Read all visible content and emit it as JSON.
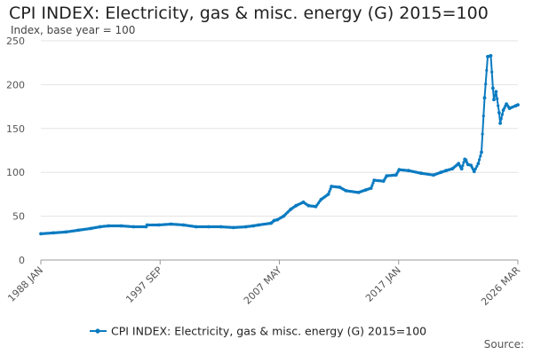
{
  "chart_data": {
    "type": "line",
    "title": "CPI INDEX: Electricity, gas & misc. energy (G) 2015=100",
    "subtitle": "Index, base year = 100",
    "xlabel": "",
    "ylabel": "",
    "x_tick_labels": [
      "1988 JAN",
      "1997 SEP",
      "2007 MAY",
      "2017 JAN",
      "2026 MAR"
    ],
    "y_tick_labels": [
      "0",
      "50",
      "100",
      "150",
      "200",
      "250"
    ],
    "ylim": [
      0,
      250
    ],
    "xlim": [
      "1988-01",
      "2026-03"
    ],
    "grid": "horizontal",
    "legend_position": "bottom",
    "series": [
      {
        "name": "CPI INDEX: Electricity, gas & misc. energy (G) 2015=100",
        "color": "#0b7bc1",
        "points": [
          [
            "1988-01",
            30
          ],
          [
            "1989-01",
            31
          ],
          [
            "1990-01",
            32
          ],
          [
            "1991-01",
            34
          ],
          [
            "1992-01",
            36
          ],
          [
            "1992-10",
            38
          ],
          [
            "1993-06",
            39
          ],
          [
            "1994-06",
            39
          ],
          [
            "1995-06",
            38
          ],
          [
            "1996-06",
            38
          ],
          [
            "1996-07",
            40
          ],
          [
            "1997-06",
            40
          ],
          [
            "1998-06",
            41
          ],
          [
            "1999-06",
            40
          ],
          [
            "2000-06",
            38
          ],
          [
            "2001-06",
            38
          ],
          [
            "2002-06",
            38
          ],
          [
            "2003-06",
            37
          ],
          [
            "2004-06",
            38
          ],
          [
            "2005-01",
            39
          ],
          [
            "2005-06",
            40
          ],
          [
            "2006-06",
            42
          ],
          [
            "2006-09",
            45
          ],
          [
            "2006-12",
            46
          ],
          [
            "2007-06",
            50
          ],
          [
            "2008-01",
            58
          ],
          [
            "2008-06",
            62
          ],
          [
            "2009-01",
            66
          ],
          [
            "2009-06",
            62
          ],
          [
            "2010-01",
            61
          ],
          [
            "2010-06",
            69
          ],
          [
            "2011-01",
            75
          ],
          [
            "2011-04",
            84
          ],
          [
            "2011-12",
            83
          ],
          [
            "2012-06",
            79
          ],
          [
            "2013-06",
            77
          ],
          [
            "2014-01",
            80
          ],
          [
            "2014-06",
            82
          ],
          [
            "2014-09",
            91
          ],
          [
            "2015-06",
            90
          ],
          [
            "2015-09",
            96
          ],
          [
            "2016-06",
            97
          ],
          [
            "2016-09",
            103
          ],
          [
            "2017-06",
            102
          ],
          [
            "2018-06",
            99
          ],
          [
            "2019-06",
            97
          ],
          [
            "2020-01",
            100
          ],
          [
            "2020-06",
            102
          ],
          [
            "2020-12",
            104
          ],
          [
            "2021-06",
            110
          ],
          [
            "2021-09",
            104
          ],
          [
            "2021-12",
            115
          ],
          [
            "2022-01",
            114
          ],
          [
            "2022-03",
            109
          ],
          [
            "2022-06",
            108
          ],
          [
            "2022-09",
            101
          ],
          [
            "2023-01",
            110
          ],
          [
            "2023-04",
            123
          ],
          [
            "2023-07",
            185
          ],
          [
            "2023-10",
            232
          ],
          [
            "2024-01",
            233
          ],
          [
            "2024-03",
            196
          ],
          [
            "2024-04",
            183
          ],
          [
            "2024-06",
            192
          ],
          [
            "2024-09",
            168
          ],
          [
            "2024-10",
            156
          ],
          [
            "2025-01",
            171
          ],
          [
            "2025-04",
            178
          ],
          [
            "2025-07",
            173
          ],
          [
            "2026-01",
            176
          ],
          [
            "2026-03",
            177
          ]
        ]
      }
    ]
  },
  "footer": {
    "source_label": "Source:"
  }
}
